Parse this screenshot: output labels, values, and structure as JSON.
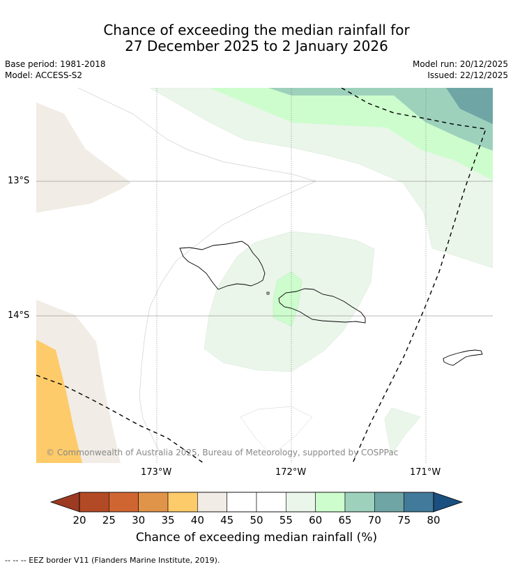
{
  "title_line1": "Chance of exceeding the median rainfall for",
  "title_line2": "27 December 2025 to 2 January 2026",
  "meta": {
    "base_period": "Base period: 1981-2018",
    "model": "Model: ACCESS-S2",
    "model_run": "Model run: 20/12/2025",
    "issued": "Issued: 22/12/2025"
  },
  "map": {
    "lat_labels": [
      "13°S",
      "14°S"
    ],
    "lon_labels": [
      "173°W",
      "172°W",
      "171°W"
    ],
    "copyright": "© Commonwealth of Australia 2025, Bureau of Meteorology, supported by COSPPac"
  },
  "colorbar": {
    "ticks": [
      "20",
      "25",
      "30",
      "35",
      "40",
      "45",
      "50",
      "55",
      "60",
      "65",
      "70",
      "75",
      "80"
    ],
    "colors": [
      "#b34a26",
      "#cf6632",
      "#e0944a",
      "#fecb6a",
      "#f1ece5",
      "#ffffff",
      "#ffffff",
      "#eaf6ea",
      "#cdfdcd",
      "#9dd1bc",
      "#6fa5a5",
      "#417a9a"
    ],
    "low_extend_color": "#9c3b22",
    "high_extend_color": "#1a4f80",
    "title": "Chance of exceeding median rainfall (%)"
  },
  "legend": {
    "eez_line": "--  --  -- EEZ border V11 (Flanders Marine Institute, 2019)."
  },
  "colors": {
    "green_light": "#eaf6ea",
    "green_mid": "#cdfdcd",
    "teal": "#9dd1bc",
    "teal_dark": "#6fa5a5",
    "beige": "#f1ece5",
    "orange": "#fecb6a"
  }
}
